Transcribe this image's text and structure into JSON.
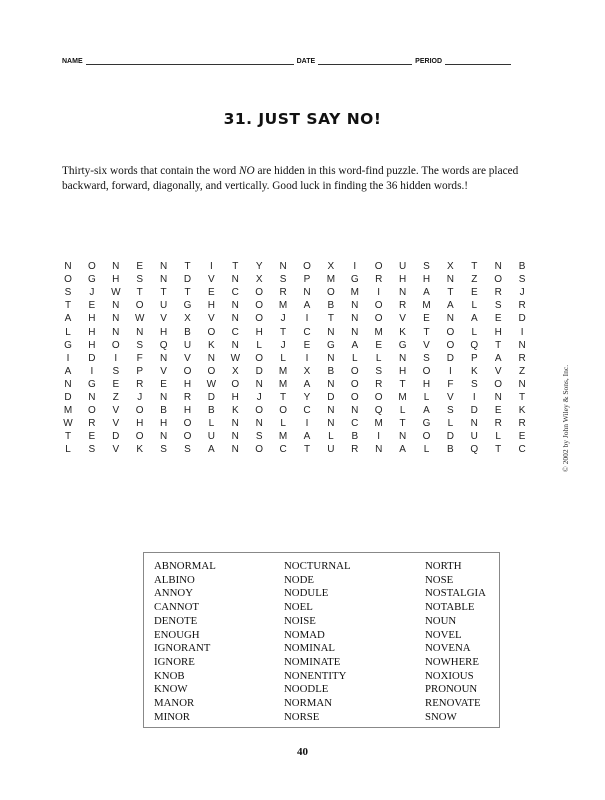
{
  "header": {
    "name_label": "NAME",
    "date_label": "DATE",
    "period_label": "PERIOD"
  },
  "title": "31. JUST SAY NO!",
  "instructions": {
    "before_italic": "Thirty-six words that contain the word ",
    "italic": "NO",
    "after_italic": " are hidden in this word-find puzzle. The words are placed backward, forward, diagonally, and vertically. Good luck in finding the 36 hidden words.!"
  },
  "puzzle": {
    "grid": [
      [
        "N",
        "O",
        "N",
        "E",
        "N",
        "T",
        "I",
        "T",
        "Y",
        "N",
        "O",
        "X",
        "I",
        "O",
        "U",
        "S",
        "X",
        "T",
        "N",
        "B"
      ],
      [
        "O",
        "G",
        "H",
        "S",
        "N",
        "D",
        "V",
        "N",
        "X",
        "S",
        "P",
        "M",
        "G",
        "R",
        "H",
        "H",
        "N",
        "Z",
        "O",
        "S"
      ],
      [
        "S",
        "J",
        "W",
        "T",
        "T",
        "T",
        "E",
        "C",
        "O",
        "R",
        "N",
        "O",
        "M",
        "I",
        "N",
        "A",
        "T",
        "E",
        "R",
        "J"
      ],
      [
        "T",
        "E",
        "N",
        "O",
        "U",
        "G",
        "H",
        "N",
        "O",
        "M",
        "A",
        "B",
        "N",
        "O",
        "R",
        "M",
        "A",
        "L",
        "S",
        "R"
      ],
      [
        "A",
        "H",
        "N",
        "W",
        "V",
        "X",
        "V",
        "N",
        "O",
        "J",
        "I",
        "T",
        "N",
        "O",
        "V",
        "E",
        "N",
        "A",
        "E",
        "D"
      ],
      [
        "L",
        "H",
        "N",
        "N",
        "H",
        "B",
        "O",
        "C",
        "H",
        "T",
        "C",
        "N",
        "N",
        "M",
        "K",
        "T",
        "O",
        "L",
        "H",
        "I"
      ],
      [
        "G",
        "H",
        "O",
        "S",
        "Q",
        "U",
        "K",
        "N",
        "L",
        "J",
        "E",
        "G",
        "A",
        "E",
        "G",
        "V",
        "O",
        "Q",
        "T",
        "N"
      ],
      [
        "I",
        "D",
        "I",
        "F",
        "N",
        "V",
        "N",
        "W",
        "O",
        "L",
        "I",
        "N",
        "L",
        "L",
        "N",
        "S",
        "D",
        "P",
        "A",
        "R"
      ],
      [
        "A",
        "I",
        "S",
        "P",
        "V",
        "O",
        "O",
        "X",
        "D",
        "M",
        "X",
        "B",
        "O",
        "S",
        "H",
        "O",
        "I",
        "K",
        "V",
        "Z"
      ],
      [
        "N",
        "G",
        "E",
        "R",
        "E",
        "H",
        "W",
        "O",
        "N",
        "M",
        "A",
        "N",
        "O",
        "R",
        "T",
        "H",
        "F",
        "S",
        "O",
        "N"
      ],
      [
        "D",
        "N",
        "Z",
        "J",
        "N",
        "R",
        "D",
        "H",
        "J",
        "T",
        "Y",
        "D",
        "O",
        "O",
        "M",
        "L",
        "V",
        "I",
        "N",
        "T"
      ],
      [
        "M",
        "O",
        "V",
        "O",
        "B",
        "H",
        "B",
        "K",
        "O",
        "O",
        "C",
        "N",
        "N",
        "Q",
        "L",
        "A",
        "S",
        "D",
        "E",
        "K"
      ],
      [
        "W",
        "R",
        "V",
        "H",
        "H",
        "O",
        "L",
        "N",
        "N",
        "L",
        "I",
        "N",
        "C",
        "M",
        "T",
        "G",
        "L",
        "N",
        "R",
        "R"
      ],
      [
        "T",
        "E",
        "D",
        "O",
        "N",
        "O",
        "U",
        "N",
        "S",
        "M",
        "A",
        "L",
        "B",
        "I",
        "N",
        "O",
        "D",
        "U",
        "L",
        "E"
      ],
      [
        "L",
        "S",
        "V",
        "K",
        "S",
        "S",
        "A",
        "N",
        "O",
        "C",
        "T",
        "U",
        "R",
        "N",
        "A",
        "L",
        "B",
        "Q",
        "T",
        "C"
      ]
    ]
  },
  "copyright": "© 2002 by John Wiley & Sons, Inc.",
  "word_list": {
    "columns": [
      [
        "ABNORMAL",
        "ALBINO",
        "ANNOY",
        "CANNOT",
        "DENOTE",
        "ENOUGH",
        "IGNORANT",
        "IGNORE",
        "KNOB",
        "KNOW",
        "MANOR",
        "MINOR"
      ],
      [
        "NOCTURNAL",
        "NODE",
        "NODULE",
        "NOEL",
        "NOISE",
        "NOMAD",
        "NOMINAL",
        "NOMINATE",
        "NONENTITY",
        "NOODLE",
        "NORMAN",
        "NORSE"
      ],
      [
        "NORTH",
        "NOSE",
        "NOSTALGIA",
        "NOTABLE",
        "NOUN",
        "NOVEL",
        "NOVENA",
        "NOWHERE",
        "NOXIOUS",
        "PRONOUN",
        "RENOVATE",
        "SNOW"
      ]
    ]
  },
  "page_number": "40"
}
